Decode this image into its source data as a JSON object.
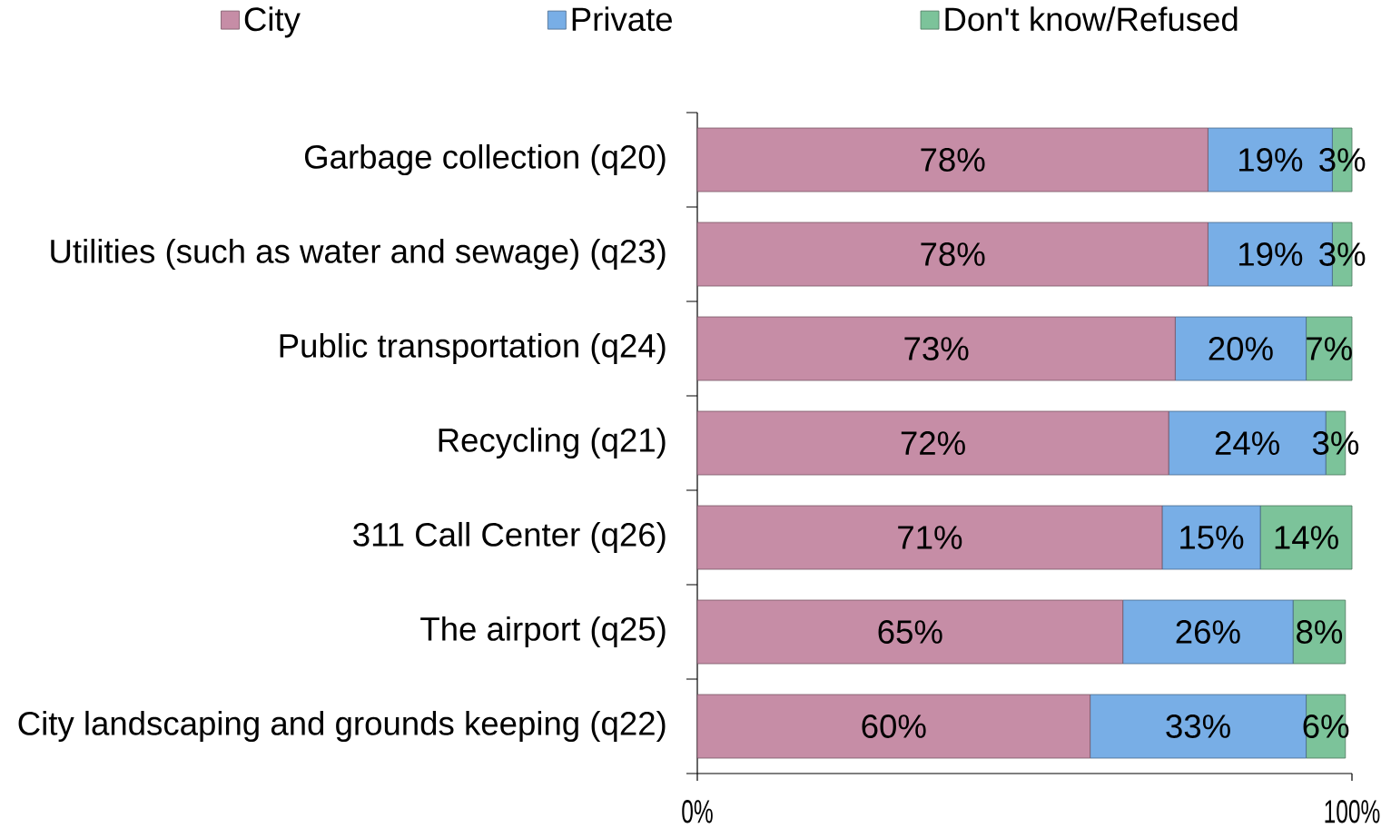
{
  "chart_data": {
    "type": "bar",
    "orientation": "horizontal",
    "stacked": true,
    "categories": [
      "Garbage collection (q20)",
      "Utilities (such as water and sewage) (q23)",
      "Public transportation (q24)",
      "Recycling (q21)",
      "311 Call Center (q26)",
      "The airport (q25)",
      "City landscaping and grounds keeping (q22)"
    ],
    "series": [
      {
        "name": "City",
        "color": "#c68da6",
        "values": [
          78,
          78,
          73,
          72,
          71,
          65,
          60
        ],
        "value_labels": [
          "78%",
          "78%",
          "73%",
          "72%",
          "71%",
          "65%",
          "60%"
        ]
      },
      {
        "name": "Private",
        "color": "#78aee6",
        "values": [
          19,
          19,
          20,
          24,
          15,
          26,
          33
        ],
        "value_labels": [
          "19%",
          "19%",
          "20%",
          "24%",
          "15%",
          "26%",
          "33%"
        ]
      },
      {
        "name": "Don't know/Refused",
        "color": "#7cc39a",
        "values": [
          3,
          3,
          7,
          3,
          14,
          8,
          6
        ],
        "value_labels": [
          "3%",
          "3%",
          "7%",
          "3%",
          "14%",
          "8%",
          "6%"
        ]
      }
    ],
    "xlim": [
      0,
      100
    ],
    "xticks": [
      {
        "value": 0,
        "label": "0%"
      },
      {
        "value": 100,
        "label": "100%"
      }
    ],
    "legend": "top"
  }
}
